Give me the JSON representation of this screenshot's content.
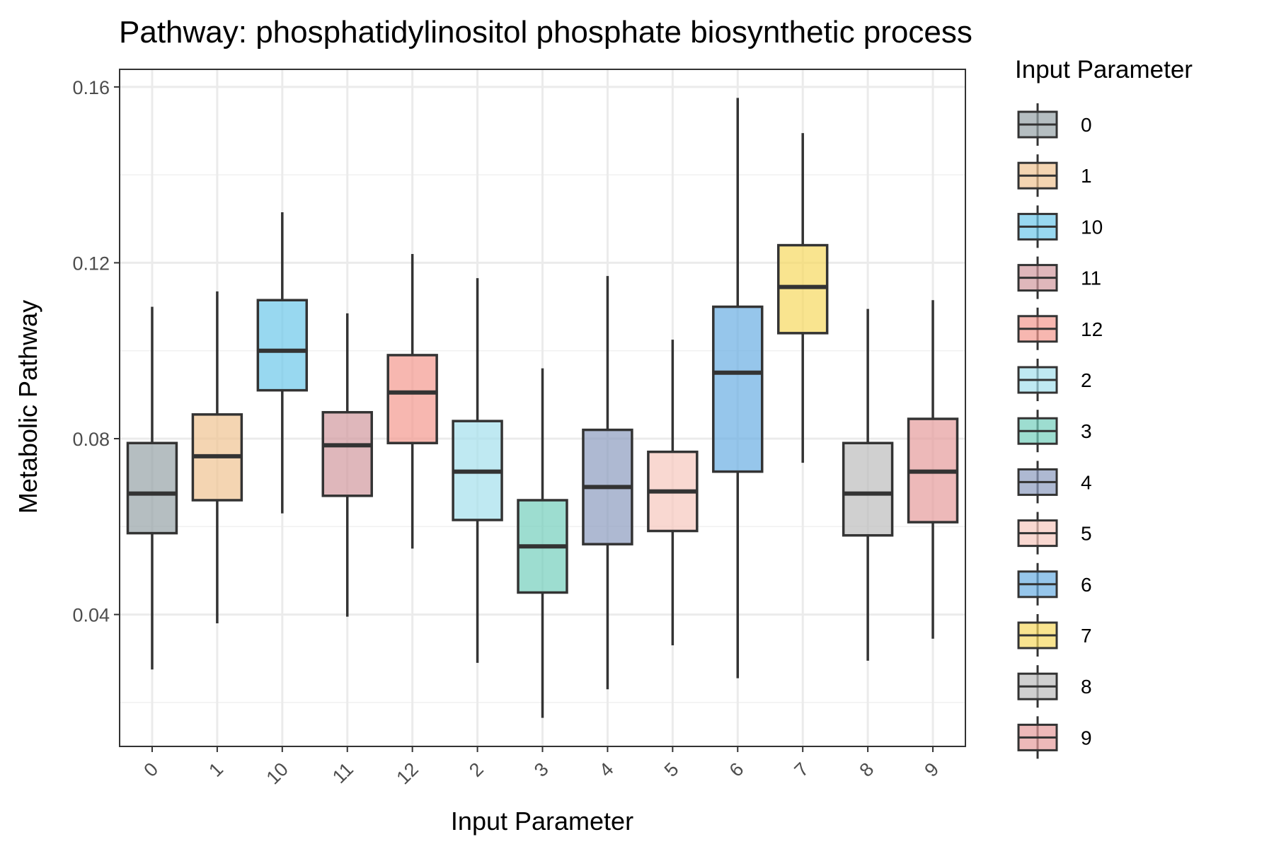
{
  "chart_data": {
    "type": "box",
    "title": "Pathway: phosphatidylinositol phosphate biosynthetic process",
    "xlabel": "Input Parameter",
    "ylabel": "Metabolic Pathway",
    "ylim": [
      0.01,
      0.164
    ],
    "yticks": [
      0.04,
      0.08,
      0.12,
      0.16
    ],
    "yticks_labels": [
      "0.04",
      "0.08",
      "0.12",
      "0.16"
    ],
    "grid": true,
    "legend": {
      "title": "Input Parameter",
      "position": "right"
    },
    "categories": [
      "0",
      "1",
      "10",
      "11",
      "12",
      "2",
      "3",
      "4",
      "5",
      "6",
      "7",
      "8",
      "9"
    ],
    "boxes": [
      {
        "label": "0",
        "whisker_low": 0.0275,
        "q1": 0.0585,
        "median": 0.0675,
        "q3": 0.079,
        "whisker_high": 0.11,
        "color": "#95a3a6"
      },
      {
        "label": "1",
        "whisker_low": 0.038,
        "q1": 0.066,
        "median": 0.076,
        "q3": 0.0855,
        "whisker_high": 0.1135,
        "color": "#f0c391"
      },
      {
        "label": "10",
        "whisker_low": 0.063,
        "q1": 0.091,
        "median": 0.1,
        "q3": 0.1115,
        "whisker_high": 0.1315,
        "color": "#6cc8ea"
      },
      {
        "label": "11",
        "whisker_low": 0.0395,
        "q1": 0.067,
        "median": 0.0785,
        "q3": 0.086,
        "whisker_high": 0.1085,
        "color": "#d1999e"
      },
      {
        "label": "12",
        "whisker_low": 0.055,
        "q1": 0.079,
        "median": 0.0905,
        "q3": 0.099,
        "whisker_high": 0.122,
        "color": "#f3988f"
      },
      {
        "label": "2",
        "whisker_low": 0.029,
        "q1": 0.0615,
        "median": 0.0725,
        "q3": 0.084,
        "whisker_high": 0.1165,
        "color": "#a4dfec"
      },
      {
        "label": "3",
        "whisker_low": 0.0165,
        "q1": 0.045,
        "median": 0.0555,
        "q3": 0.066,
        "whisker_high": 0.096,
        "color": "#73cfbc"
      },
      {
        "label": "4",
        "whisker_low": 0.023,
        "q1": 0.056,
        "median": 0.069,
        "q3": 0.082,
        "whisker_high": 0.117,
        "color": "#8b9bbf"
      },
      {
        "label": "5",
        "whisker_low": 0.033,
        "q1": 0.059,
        "median": 0.068,
        "q3": 0.077,
        "whisker_high": 0.1025,
        "color": "#f6c8bd"
      },
      {
        "label": "6",
        "whisker_low": 0.0255,
        "q1": 0.0725,
        "median": 0.095,
        "q3": 0.11,
        "whisker_high": 0.1575,
        "color": "#6aaee2"
      },
      {
        "label": "7",
        "whisker_low": 0.0745,
        "q1": 0.104,
        "median": 0.1145,
        "q3": 0.124,
        "whisker_high": 0.1495,
        "color": "#f6d85f"
      },
      {
        "label": "8",
        "whisker_low": 0.0295,
        "q1": 0.058,
        "median": 0.0675,
        "q3": 0.079,
        "whisker_high": 0.1095,
        "color": "#bcbcbc"
      },
      {
        "label": "9",
        "whisker_low": 0.0345,
        "q1": 0.061,
        "median": 0.0725,
        "q3": 0.0845,
        "whisker_high": 0.1115,
        "color": "#e69b9b"
      }
    ],
    "legend_entries": [
      "0",
      "1",
      "10",
      "11",
      "12",
      "2",
      "3",
      "4",
      "5",
      "6",
      "7",
      "8",
      "9"
    ]
  }
}
